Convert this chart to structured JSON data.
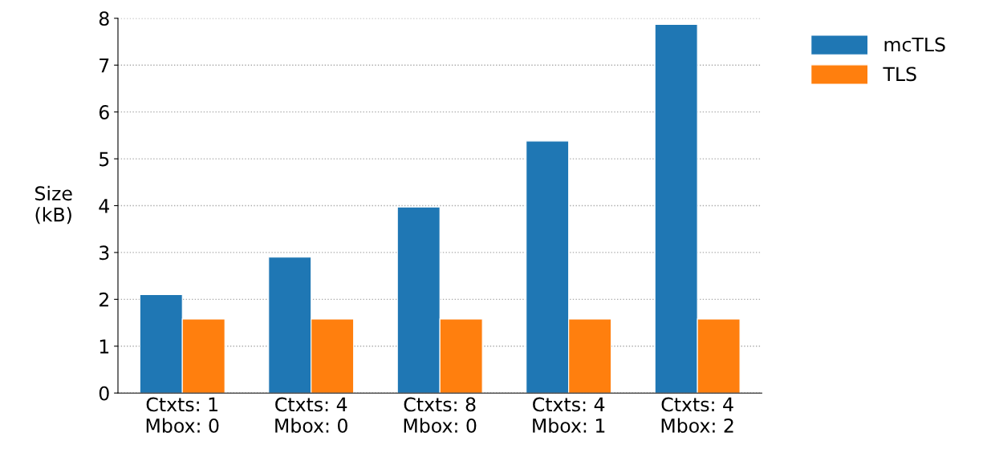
{
  "chart_data": {
    "type": "bar",
    "ylabel": "Size\n(kB)",
    "categories": [
      "Ctxts: 1\nMbox: 0",
      "Ctxts: 4\nMbox: 0",
      "Ctxts: 8\nMbox: 0",
      "Ctxts: 4\nMbox: 1",
      "Ctxts: 4\nMbox: 2"
    ],
    "series": [
      {
        "name": "mcTLS",
        "color": "#1f77b4",
        "values": [
          2.1,
          2.9,
          3.97,
          5.38,
          7.87
        ]
      },
      {
        "name": "TLS",
        "color": "#ff7f0e",
        "values": [
          1.58,
          1.58,
          1.58,
          1.58,
          1.58
        ]
      }
    ],
    "ylim": [
      0,
      8
    ],
    "yticks": [
      0,
      1,
      2,
      3,
      4,
      5,
      6,
      7,
      8
    ],
    "grid": "y",
    "legend": "top right"
  }
}
